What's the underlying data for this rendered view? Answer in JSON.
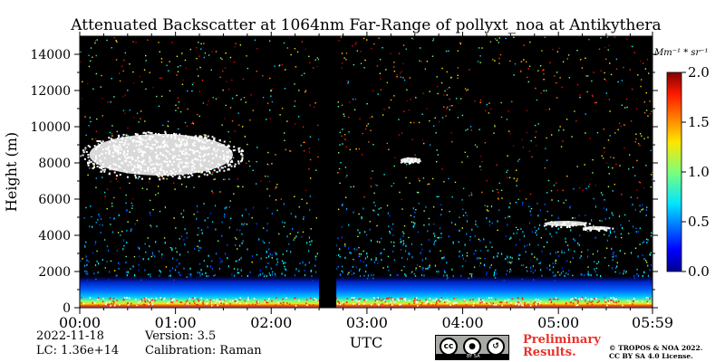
{
  "chart_data": {
    "type": "heatmap",
    "title": "Attenuated Backscatter at 1064nm Far-Range of pollyxt_noa at Antikythera",
    "ylabel": "Height (m)",
    "xlabel": "UTC",
    "x_ticks": [
      "00:00",
      "01:00",
      "02:00",
      "03:00",
      "04:00",
      "05:00",
      "05:59"
    ],
    "x_tick_hours": [
      0,
      1,
      2,
      3,
      4,
      5,
      5.983
    ],
    "y_ticks": [
      0,
      2000,
      4000,
      6000,
      8000,
      10000,
      12000,
      14000
    ],
    "xlim_hours": [
      0,
      5.983
    ],
    "ylim_m": [
      0,
      15000
    ],
    "colorbar": {
      "unit_label": "Mm⁻¹ * sr⁻¹",
      "ticks": [
        0.0,
        0.5,
        1.0,
        1.5,
        2.0
      ],
      "tick_labels": [
        "0.0",
        "0.5",
        "1.0",
        "1.5",
        "2.0"
      ],
      "range": [
        0,
        2.0
      ],
      "colormap": "jet"
    },
    "background_color": "#000000",
    "data_gap_hours": [
      2.5,
      2.68
    ],
    "layers": [
      {
        "name": "aerosol-boundary-layer",
        "start_h": 0,
        "end_h": 5.983,
        "base_m": 0,
        "top_m": 1800,
        "peak_value": 2.0
      },
      {
        "name": "upper-cloud-1",
        "start_h": 0.1,
        "end_h": 1.6,
        "base_m": 7300,
        "top_m": 9600,
        "value": "saturated"
      },
      {
        "name": "cloud-2",
        "start_h": 3.35,
        "end_h": 3.55,
        "base_m": 8000,
        "top_m": 8300,
        "value": "saturated"
      },
      {
        "name": "cloud-3",
        "start_h": 4.85,
        "end_h": 5.3,
        "base_m": 4500,
        "top_m": 4800,
        "value": "saturated"
      },
      {
        "name": "cloud-4",
        "start_h": 5.25,
        "end_h": 5.55,
        "base_m": 4300,
        "top_m": 4500,
        "value": "saturated"
      }
    ]
  },
  "footer": {
    "date": "2022-11-18",
    "lc": "LC: 1.36e+14",
    "version": "Version: 3.5",
    "calibration": "Calibration: Raman",
    "preliminary_line1": "Preliminary",
    "preliminary_line2": "Results.",
    "copyright_line1": "© TROPOS & NOA 2022.",
    "copyright_line2": "CC BY SA 4.0 License.",
    "license_text": "BY  SA",
    "cc_glyph": "cc"
  },
  "colors": {
    "background": "#000000",
    "cloud": "#ffffff",
    "preliminary": "#e8312a"
  }
}
